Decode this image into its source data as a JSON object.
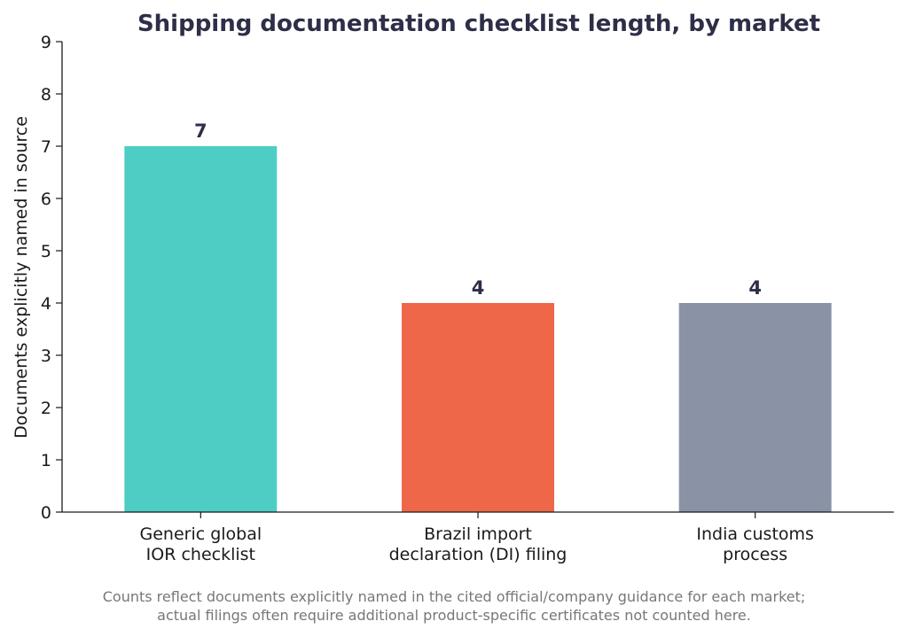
{
  "chart_data": {
    "type": "bar",
    "title": "Shipping documentation checklist length, by market",
    "xlabel": "",
    "ylabel": "Documents explicitly named in source",
    "categories": [
      [
        "Generic global",
        "IOR checklist"
      ],
      [
        "Brazil import",
        "declaration (DI) filing"
      ],
      [
        "India customs",
        "process"
      ]
    ],
    "values": [
      7,
      4,
      4
    ],
    "data_labels": [
      "7",
      "4",
      "4"
    ],
    "colors": [
      "#4ecdc4",
      "#ee6748",
      "#8a92a6"
    ],
    "ylim": [
      0,
      9
    ],
    "yticks": [
      0,
      1,
      2,
      3,
      4,
      5,
      6,
      7,
      8,
      9
    ],
    "grid": false,
    "legend": "none"
  },
  "footnote": {
    "lines": [
      "Counts reflect documents explicitly named in the cited official/company guidance for each market;",
      "actual filings often require additional product-specific certificates not counted here."
    ]
  }
}
